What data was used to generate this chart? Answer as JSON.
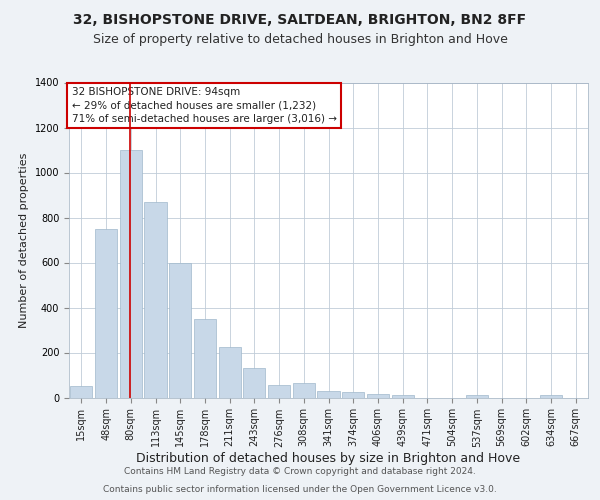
{
  "title1": "32, BISHOPSTONE DRIVE, SALTDEAN, BRIGHTON, BN2 8FF",
  "title2": "Size of property relative to detached houses in Brighton and Hove",
  "xlabel": "Distribution of detached houses by size in Brighton and Hove",
  "ylabel": "Number of detached properties",
  "categories": [
    "15sqm",
    "48sqm",
    "80sqm",
    "113sqm",
    "145sqm",
    "178sqm",
    "211sqm",
    "243sqm",
    "276sqm",
    "308sqm",
    "341sqm",
    "374sqm",
    "406sqm",
    "439sqm",
    "471sqm",
    "504sqm",
    "537sqm",
    "569sqm",
    "602sqm",
    "634sqm",
    "667sqm"
  ],
  "values": [
    50,
    750,
    1100,
    870,
    600,
    350,
    225,
    130,
    55,
    65,
    30,
    25,
    15,
    10,
    0,
    0,
    10,
    0,
    0,
    10,
    0
  ],
  "bar_color": "#c8d8e8",
  "bar_edge_color": "#a0b8cc",
  "red_line_x": 1.95,
  "annotation_line1": "32 BISHOPSTONE DRIVE: 94sqm",
  "annotation_line2": "← 29% of detached houses are smaller (1,232)",
  "annotation_line3": "71% of semi-detached houses are larger (3,016) →",
  "annotation_box_color": "#ffffff",
  "annotation_box_edge": "#cc0000",
  "footer1": "Contains HM Land Registry data © Crown copyright and database right 2024.",
  "footer2": "Contains public sector information licensed under the Open Government Licence v3.0.",
  "ylim": [
    0,
    1400
  ],
  "yticks": [
    0,
    200,
    400,
    600,
    800,
    1000,
    1200,
    1400
  ],
  "bg_color": "#eef2f6",
  "plot_bg_color": "#ffffff",
  "title1_fontsize": 10,
  "title2_fontsize": 9,
  "xlabel_fontsize": 9,
  "ylabel_fontsize": 8,
  "tick_fontsize": 7,
  "annotation_fontsize": 7.5,
  "footer_fontsize": 6.5
}
